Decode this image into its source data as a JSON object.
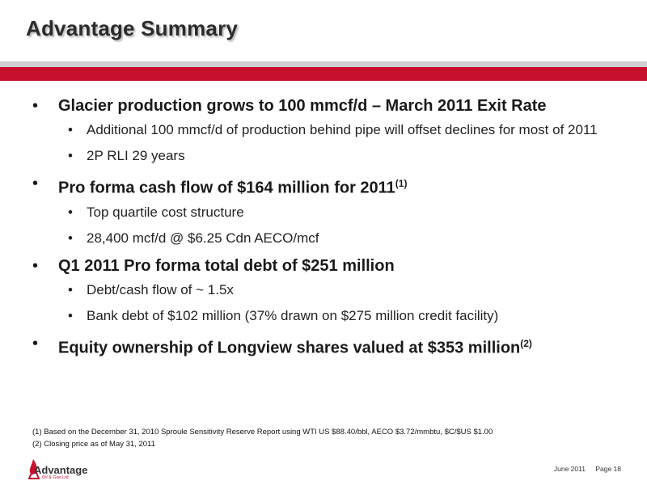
{
  "title": "Advantage Summary",
  "bullets": [
    {
      "text": "Glacier production grows to 100 mmcf/d – March 2011 Exit Rate",
      "sup": "",
      "sub": [
        "Additional 100 mmcf/d of production behind pipe will offset declines for most of 2011",
        "2P RLI 29 years"
      ]
    },
    {
      "text": "Pro forma cash flow of $164 million for 2011",
      "sup": "(1)",
      "sub": [
        "Top quartile cost structure",
        " 28,400 mcf/d @ $6.25 Cdn AECO/mcf"
      ]
    },
    {
      "text": "Q1 2011 Pro forma total debt of $251 million",
      "sup": "",
      "sub": [
        "Debt/cash flow of ~ 1.5x",
        "Bank debt of $102 million (37% drawn on $275 million credit facility)"
      ]
    },
    {
      "text": "Equity ownership of Longview shares valued at $353 million",
      "sup": "(2)",
      "sub": []
    }
  ],
  "footnotes": [
    "(1)  Based on the December 31, 2010 Sproule Sensitivity Reserve Report using WTI US $88.40/bbl, AECO $3.72/mmbtu, $C/$US $1.00",
    "(2)  Closing price as of May 31, 2011"
  ],
  "logo": {
    "name": "Advantage",
    "tagline": "Oil & Gas Ltd."
  },
  "footer": {
    "date": "June 2011",
    "page": "Page 18"
  },
  "colors": {
    "accent_red": "#c8102e",
    "band_grey": "#cfcfcf"
  }
}
